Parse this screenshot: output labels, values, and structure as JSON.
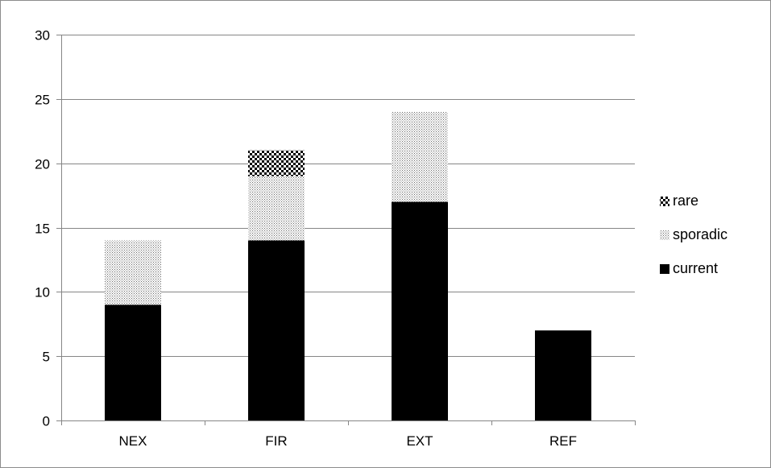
{
  "chart_data": {
    "type": "bar",
    "stacked": true,
    "title": "",
    "xlabel": "",
    "ylabel": "",
    "categories": [
      "NEX",
      "FIR",
      "EXT",
      "REF"
    ],
    "series": [
      {
        "name": "current",
        "values": [
          9,
          14,
          17,
          7
        ],
        "color": "#000000",
        "pattern": "solid"
      },
      {
        "name": "sporadic",
        "values": [
          5,
          5,
          7,
          0
        ],
        "color": "#000000",
        "pattern": "fine-dots"
      },
      {
        "name": "rare",
        "values": [
          0,
          2,
          0,
          0
        ],
        "color": "#000000",
        "pattern": "checker"
      }
    ],
    "ylim": [
      0,
      30
    ],
    "yticks": [
      0,
      5,
      10,
      15,
      20,
      25,
      30
    ],
    "grid": "horizontal",
    "legend": {
      "position": "right",
      "order": [
        "rare",
        "sporadic",
        "current"
      ]
    }
  }
}
